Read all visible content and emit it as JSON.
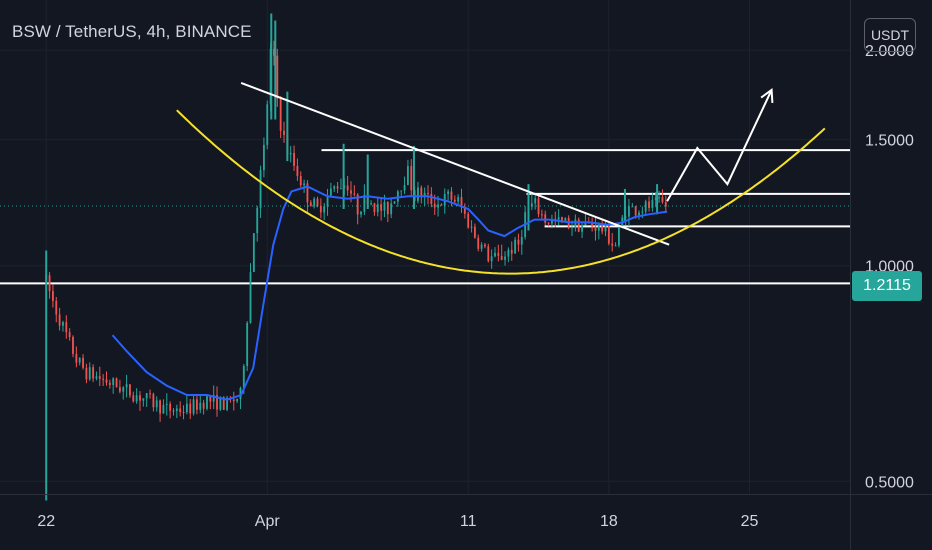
{
  "header": {
    "title": "BSW / TetherUS, 4h, BINANCE",
    "unit_button": "USDT"
  },
  "last_price_label": "1.2115",
  "colors": {
    "background": "#131722",
    "up_candle": "#26a69a",
    "down_candle": "#ef5350",
    "moving_average": "#2962ff",
    "cup_curve": "#f5e12a",
    "drawing_lines": "#ffffff",
    "axis_text": "#d1d4dc"
  },
  "chart_data": {
    "type": "candlestick",
    "y_scale": "log",
    "ylim": [
      0.48,
      2.35
    ],
    "y_ticks": [
      {
        "value": 2.0,
        "label": "2.0000"
      },
      {
        "value": 1.5,
        "label": "1.5000"
      },
      {
        "value": 1.0,
        "label": "1.0000"
      },
      {
        "value": 0.5,
        "label": "0.5000"
      }
    ],
    "x_ticks": [
      {
        "day": -10,
        "label": "22"
      },
      {
        "day": 1,
        "label": "Apr"
      },
      {
        "day": 11,
        "label": "11"
      },
      {
        "day": 18,
        "label": "18"
      },
      {
        "day": 25,
        "label": "25"
      }
    ],
    "xlim": [
      -12.3,
      30.0
    ],
    "last_price": 1.2115,
    "price_path": [
      [
        -10.0,
        0.95
      ],
      [
        -9.6,
        0.88
      ],
      [
        -9.0,
        0.8
      ],
      [
        -8.5,
        0.74
      ],
      [
        -8.0,
        0.71
      ],
      [
        -7.0,
        0.69
      ],
      [
        -6.0,
        0.67
      ],
      [
        -5.0,
        0.65
      ],
      [
        -4.0,
        0.63
      ],
      [
        -3.0,
        0.63
      ],
      [
        -2.0,
        0.65
      ],
      [
        -1.0,
        0.64
      ],
      [
        -0.3,
        0.66
      ],
      [
        0.0,
        0.85
      ],
      [
        0.3,
        1.1
      ],
      [
        0.6,
        1.3
      ],
      [
        0.9,
        1.5
      ],
      [
        1.1,
        1.9
      ],
      [
        1.25,
        2.1
      ],
      [
        1.4,
        1.8
      ],
      [
        1.7,
        1.55
      ],
      [
        2.0,
        1.45
      ],
      [
        2.5,
        1.35
      ],
      [
        3.0,
        1.25
      ],
      [
        3.5,
        1.2
      ],
      [
        4.0,
        1.25
      ],
      [
        4.5,
        1.3
      ],
      [
        5.0,
        1.3
      ],
      [
        5.5,
        1.2
      ],
      [
        6.0,
        1.25
      ],
      [
        6.5,
        1.2
      ],
      [
        7.0,
        1.2
      ],
      [
        7.5,
        1.28
      ],
      [
        8.0,
        1.35
      ],
      [
        8.3,
        1.25
      ],
      [
        8.6,
        1.27
      ],
      [
        9.0,
        1.24
      ],
      [
        9.5,
        1.22
      ],
      [
        10.0,
        1.25
      ],
      [
        10.5,
        1.23
      ],
      [
        11.0,
        1.15
      ],
      [
        11.5,
        1.08
      ],
      [
        12.0,
        1.03
      ],
      [
        12.5,
        1.02
      ],
      [
        13.0,
        1.05
      ],
      [
        13.5,
        1.07
      ],
      [
        13.9,
        1.2
      ],
      [
        14.3,
        1.22
      ],
      [
        14.8,
        1.16
      ],
      [
        15.5,
        1.15
      ],
      [
        16.5,
        1.14
      ],
      [
        17.3,
        1.14
      ],
      [
        17.8,
        1.12
      ],
      [
        18.3,
        1.06
      ],
      [
        18.6,
        1.14
      ],
      [
        18.8,
        1.2
      ],
      [
        19.3,
        1.2
      ],
      [
        20.0,
        1.21
      ],
      [
        20.6,
        1.22
      ],
      [
        20.9,
        1.2115
      ]
    ],
    "spikes": [
      {
        "day": -10.0,
        "high": 1.05,
        "low": 0.47
      },
      {
        "day": 1.2,
        "high": 2.25,
        "low": 1.6
      },
      {
        "day": 1.4,
        "high": 2.2,
        "low": 1.6
      },
      {
        "day": 2.0,
        "high": 1.75,
        "low": 1.4
      },
      {
        "day": 4.8,
        "high": 1.48,
        "low": 1.2
      },
      {
        "day": 6.0,
        "high": 1.43,
        "low": 1.2
      },
      {
        "day": 8.3,
        "high": 1.47,
        "low": 1.2
      },
      {
        "day": 14.0,
        "high": 1.3,
        "low": 1.12
      },
      {
        "day": 18.8,
        "high": 1.28,
        "low": 1.15
      },
      {
        "day": 20.4,
        "high": 1.3,
        "low": 1.18
      }
    ],
    "moving_average": [
      [
        -6.7,
        0.8
      ],
      [
        -6.0,
        0.76
      ],
      [
        -5.0,
        0.71
      ],
      [
        -4.0,
        0.68
      ],
      [
        -3.0,
        0.66
      ],
      [
        -2.0,
        0.66
      ],
      [
        -1.0,
        0.65
      ],
      [
        -0.3,
        0.66
      ],
      [
        0.3,
        0.72
      ],
      [
        0.8,
        0.88
      ],
      [
        1.3,
        1.07
      ],
      [
        1.8,
        1.2
      ],
      [
        2.2,
        1.27
      ],
      [
        3.0,
        1.29
      ],
      [
        4.0,
        1.25
      ],
      [
        5.0,
        1.24
      ],
      [
        6.0,
        1.25
      ],
      [
        7.0,
        1.24
      ],
      [
        8.0,
        1.25
      ],
      [
        9.0,
        1.25
      ],
      [
        10.0,
        1.23
      ],
      [
        11.0,
        1.2
      ],
      [
        11.5,
        1.16
      ],
      [
        12.0,
        1.12
      ],
      [
        12.8,
        1.1
      ],
      [
        13.5,
        1.13
      ],
      [
        14.3,
        1.16
      ],
      [
        15.0,
        1.16
      ],
      [
        16.0,
        1.15
      ],
      [
        17.0,
        1.15
      ],
      [
        18.0,
        1.14
      ],
      [
        18.7,
        1.15
      ],
      [
        19.3,
        1.17
      ],
      [
        20.0,
        1.18
      ],
      [
        20.9,
        1.19
      ]
    ],
    "drawings": {
      "horizontal_levels": [
        {
          "y": 0.945,
          "from_day": -12.3,
          "to_day": 30.0
        },
        {
          "y": 1.45,
          "from_day": 3.7,
          "to_day": 30.0
        },
        {
          "y": 1.26,
          "from_day": 13.9,
          "to_day": 30.0
        },
        {
          "y": 1.135,
          "from_day": 14.8,
          "to_day": 30.0
        }
      ],
      "descending_trendline": [
        [
          -0.3,
          1.8
        ],
        [
          21.0,
          1.07
        ]
      ],
      "cup_curve": {
        "vertex_day": 13.1,
        "vertex_y": 0.975,
        "from_day": -3.5,
        "to_day": 28.8,
        "end_y": 1.56
      },
      "projection_path": [
        [
          20.9,
          1.23
        ],
        [
          22.4,
          1.46
        ],
        [
          23.9,
          1.3
        ],
        [
          26.1,
          1.76
        ]
      ]
    }
  }
}
